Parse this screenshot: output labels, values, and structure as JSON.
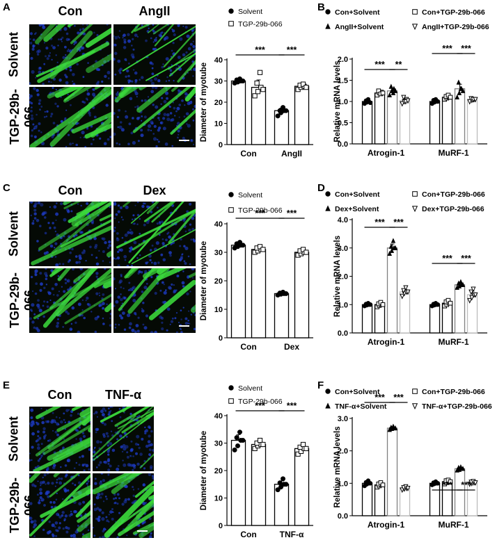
{
  "panels": [
    {
      "id": "A",
      "label": "A",
      "micro": {
        "columns": [
          "Con",
          "AngII"
        ],
        "rows": [
          "Solvent",
          "TGP-29b-066"
        ],
        "row2_lines": [
          "TGP-29b-",
          "066"
        ]
      },
      "chart_data": {
        "type": "bar",
        "ylabel": "Diameter of myotube",
        "categories": [
          "Con",
          "AngII"
        ],
        "ylim": [
          0,
          40
        ],
        "yticks": [
          0,
          10,
          20,
          30,
          40
        ],
        "legend": {
          "placement": "top",
          "entries": [
            "Solvent",
            "TGP-29b-066"
          ]
        },
        "series": [
          {
            "name": "Solvent",
            "values": [
              30,
              16
            ],
            "points": [
              [
                29,
                29.5,
                30,
                30.5,
                31,
                30
              ],
              [
                13.5,
                15,
                16,
                16,
                17.5,
                16
              ]
            ]
          },
          {
            "name": "TGP-29b-066",
            "values": [
              27,
              27.5
            ],
            "points": [
              [
                23,
                25,
                27,
                29,
                34,
                26
              ],
              [
                26,
                27,
                27.5,
                28,
                28.5,
                27
              ]
            ]
          }
        ],
        "significance": [
          {
            "label": "***",
            "from": "Con.Solvent",
            "to": "AngII.Solvent"
          },
          {
            "label": "***",
            "from": "AngII.Solvent",
            "to": "AngII.TGP-29b-066"
          }
        ]
      }
    },
    {
      "id": "B",
      "label": "B",
      "chart_data": {
        "type": "bar",
        "ylabel": "Relative mRNA levels",
        "categories": [
          "Atrogin-1",
          "MuRF-1"
        ],
        "ylim": [
          0.0,
          2.0
        ],
        "yticks": [
          0.0,
          0.5,
          1.0,
          1.5,
          2.0
        ],
        "tick_format": 1,
        "legend": {
          "placement": "top",
          "entries": [
            "Con+Solvent",
            "Con+TGP-29b-066",
            "AngII+Solvent",
            "AngII+TGP-29b-066"
          ]
        },
        "series": [
          {
            "name": "Con+Solvent",
            "values": [
              1.0,
              1.0
            ],
            "points": [
              [
                0.95,
                0.98,
                1.0,
                1.02,
                1.05,
                0.97
              ],
              [
                0.95,
                0.98,
                1.0,
                1.03,
                1.05,
                1.0
              ]
            ]
          },
          {
            "name": "Con+TGP-29b-066",
            "values": [
              1.2,
              1.1
            ],
            "points": [
              [
                1.15,
                1.2,
                1.22,
                1.25,
                1.18,
                1.2
              ],
              [
                1.05,
                1.08,
                1.1,
                1.12,
                1.15,
                1.1
              ]
            ]
          },
          {
            "name": "AngII+Solvent",
            "values": [
              1.25,
              1.3
            ],
            "points": [
              [
                1.15,
                1.25,
                1.3,
                1.35,
                1.2,
                1.25
              ],
              [
                1.1,
                1.2,
                1.3,
                1.45,
                1.3,
                1.25
              ]
            ]
          },
          {
            "name": "AngII+TGP-29b-066",
            "values": [
              1.02,
              1.05
            ],
            "points": [
              [
                0.95,
                1.0,
                1.05,
                1.1,
                1.0,
                1.02
              ],
              [
                1.0,
                1.03,
                1.05,
                1.07,
                1.05,
                1.05
              ]
            ]
          }
        ],
        "significance": [
          {
            "label": "***",
            "from": "Atrogin-1.Con+Solvent",
            "to": "Atrogin-1.AngII+Solvent"
          },
          {
            "label": "**",
            "from": "Atrogin-1.AngII+Solvent",
            "to": "Atrogin-1.AngII+TGP-29b-066"
          },
          {
            "label": "***",
            "from": "MuRF-1.Con+Solvent",
            "to": "MuRF-1.AngII+Solvent"
          },
          {
            "label": "***",
            "from": "MuRF-1.AngII+Solvent",
            "to": "MuRF-1.AngII+TGP-29b-066"
          }
        ]
      }
    },
    {
      "id": "C",
      "label": "C",
      "micro": {
        "columns": [
          "Con",
          "Dex"
        ],
        "rows": [
          "Solvent",
          "TGP-29b-066"
        ],
        "row2_lines": [
          "TGP-29b-",
          "066"
        ]
      },
      "chart_data": {
        "type": "bar",
        "ylabel": "Diameter of myotube",
        "categories": [
          "Con",
          "Dex"
        ],
        "ylim": [
          0,
          40
        ],
        "yticks": [
          0,
          10,
          20,
          30,
          40
        ],
        "legend": {
          "placement": "top",
          "entries": [
            "Solvent",
            "TGP-29b-066"
          ]
        },
        "series": [
          {
            "name": "Solvent",
            "values": [
              32.5,
              15.5
            ],
            "points": [
              [
                31.5,
                32,
                32.5,
                33,
                33.5,
                32.5
              ],
              [
                15,
                15.3,
                15.5,
                15.7,
                16,
                15.5
              ]
            ]
          },
          {
            "name": "TGP-29b-066",
            "values": [
              31,
              30
            ],
            "points": [
              [
                30,
                30.5,
                31,
                31.5,
                32,
                31
              ],
              [
                29,
                29.5,
                30,
                30.5,
                31,
                30
              ]
            ]
          }
        ],
        "significance": [
          {
            "label": "***",
            "from": "Con.Solvent",
            "to": "Dex.Solvent"
          },
          {
            "label": "***",
            "from": "Dex.Solvent",
            "to": "Dex.TGP-29b-066"
          }
        ]
      }
    },
    {
      "id": "D",
      "label": "D",
      "chart_data": {
        "type": "bar",
        "ylabel": "Relative mRNA levels",
        "categories": [
          "Atrogin-1",
          "MuRF-1"
        ],
        "ylim": [
          0.0,
          4.0
        ],
        "yticks": [
          0.0,
          1.0,
          2.0,
          3.0,
          4.0
        ],
        "tick_format": 1,
        "legend": {
          "placement": "top",
          "entries": [
            "Con+Solvent",
            "Con+TGP-29b-066",
            "Dex+Solvent",
            "Dex+TGP-29b-066"
          ]
        },
        "series": [
          {
            "name": "Con+Solvent",
            "values": [
              1.0,
              1.0
            ],
            "points": [
              [
                0.95,
                0.98,
                1.0,
                1.02,
                1.05,
                1.0
              ],
              [
                0.95,
                0.98,
                1.0,
                1.02,
                1.05,
                1.0
              ]
            ]
          },
          {
            "name": "Con+TGP-29b-066",
            "values": [
              1.0,
              1.05
            ],
            "points": [
              [
                0.92,
                0.97,
                1.0,
                1.03,
                1.08,
                1.0
              ],
              [
                0.95,
                1.0,
                1.05,
                1.1,
                1.15,
                1.05
              ]
            ]
          },
          {
            "name": "Dex+Solvent",
            "values": [
              3.0,
              1.7
            ],
            "points": [
              [
                2.8,
                2.9,
                3.0,
                3.05,
                3.25,
                3.0
              ],
              [
                1.6,
                1.65,
                1.7,
                1.75,
                1.8,
                1.7
              ]
            ]
          },
          {
            "name": "Dex+TGP-29b-066",
            "values": [
              1.45,
              1.35
            ],
            "points": [
              [
                1.3,
                1.4,
                1.45,
                1.5,
                1.6,
                1.45
              ],
              [
                1.15,
                1.25,
                1.35,
                1.45,
                1.55,
                1.35
              ]
            ]
          }
        ],
        "significance": [
          {
            "label": "***",
            "from": "Atrogin-1.Con+Solvent",
            "to": "Atrogin-1.Dex+Solvent"
          },
          {
            "label": "***",
            "from": "Atrogin-1.Dex+Solvent",
            "to": "Atrogin-1.Dex+TGP-29b-066"
          },
          {
            "label": "***",
            "from": "MuRF-1.Con+Solvent",
            "to": "MuRF-1.Dex+Solvent"
          },
          {
            "label": "***",
            "from": "MuRF-1.Dex+Solvent",
            "to": "MuRF-1.Dex+TGP-29b-066"
          }
        ]
      }
    },
    {
      "id": "E",
      "label": "E",
      "micro": {
        "columns": [
          "Con",
          "TNF-α"
        ],
        "rows": [
          "Solvent",
          "TGP-29b-066"
        ],
        "row2_lines": [
          "TGP-29b-",
          "066"
        ]
      },
      "chart_data": {
        "type": "bar",
        "ylabel": "Diameter of myotube",
        "categories": [
          "Con",
          "TNF-α"
        ],
        "ylim": [
          0,
          40
        ],
        "yticks": [
          0,
          10,
          20,
          30,
          40
        ],
        "legend": {
          "placement": "top",
          "entries": [
            "Solvent",
            "TGP-29b-066"
          ]
        },
        "series": [
          {
            "name": "Solvent",
            "values": [
              31,
              15
            ],
            "points": [
              [
                27.5,
                29,
                31,
                32,
                34,
                31
              ],
              [
                13,
                14,
                15,
                15.5,
                17,
                15
              ]
            ]
          },
          {
            "name": "TGP-29b-066",
            "values": [
              29.5,
              28
            ],
            "points": [
              [
                28,
                29,
                29.5,
                30,
                31,
                29.5
              ],
              [
                26,
                27,
                28,
                28.5,
                29.5,
                28
              ]
            ]
          }
        ],
        "significance": [
          {
            "label": "***",
            "from": "Con.Solvent",
            "to": "TNF-α.Solvent"
          },
          {
            "label": "***",
            "from": "TNF-α.Solvent",
            "to": "TNF-α.TGP-29b-066"
          }
        ]
      }
    },
    {
      "id": "F",
      "label": "F",
      "chart_data": {
        "type": "bar",
        "ylabel": "Relative mRNA levels",
        "categories": [
          "Atrogin-1",
          "MuRF-1"
        ],
        "ylim": [
          0.0,
          3.0
        ],
        "yticks": [
          0.0,
          1.0,
          2.0,
          3.0
        ],
        "tick_format": 1,
        "legend": {
          "placement": "top",
          "entries": [
            "Con+Solvent",
            "Con+TGP-29b-066",
            "TNF-α+Solvent",
            "TNF-α+TGP-29b-066"
          ]
        },
        "series": [
          {
            "name": "Con+Solvent",
            "values": [
              1.0,
              1.0
            ],
            "points": [
              [
                0.92,
                0.97,
                1.0,
                1.03,
                1.08,
                1.0
              ],
              [
                0.95,
                0.98,
                1.0,
                1.02,
                1.05,
                1.0
              ]
            ]
          },
          {
            "name": "Con+TGP-29b-066",
            "values": [
              0.95,
              1.05
            ],
            "points": [
              [
                0.88,
                0.92,
                0.95,
                0.98,
                1.02,
                0.95
              ],
              [
                0.98,
                1.02,
                1.05,
                1.08,
                1.1,
                1.05
              ]
            ]
          },
          {
            "name": "TNF-α+Solvent",
            "values": [
              2.7,
              1.45
            ],
            "points": [
              [
                2.65,
                2.68,
                2.7,
                2.72,
                2.75,
                2.7
              ],
              [
                1.4,
                1.42,
                1.45,
                1.48,
                1.5,
                1.45
              ]
            ]
          },
          {
            "name": "TNF-α+TGP-29b-066",
            "values": [
              0.85,
              1.02
            ],
            "points": [
              [
                0.8,
                0.83,
                0.85,
                0.87,
                0.9,
                0.85
              ],
              [
                0.98,
                1.0,
                1.02,
                1.04,
                1.06,
                1.02
              ]
            ]
          }
        ],
        "significance": [
          {
            "label": "***",
            "from": "Atrogin-1.Con+Solvent",
            "to": "Atrogin-1.TNF-α+Solvent"
          },
          {
            "label": "***",
            "from": "Atrogin-1.TNF-α+Solvent",
            "to": "Atrogin-1.TNF-α+TGP-29b-066"
          },
          {
            "label": "***",
            "from": "MuRF-1.Con+Solvent",
            "to": "MuRF-1.TNF-α+Solvent"
          },
          {
            "label": "***",
            "from": "MuRF-1.TNF-α+Solvent",
            "to": "MuRF-1.TNF-α+TGP-29b-066"
          }
        ]
      }
    }
  ],
  "colors": {
    "nucleus_blue": "#1e3cc8",
    "myotube_green": "#3cdc3c",
    "bar_fill": "#ffffff",
    "bar_stroke": "#000000"
  }
}
